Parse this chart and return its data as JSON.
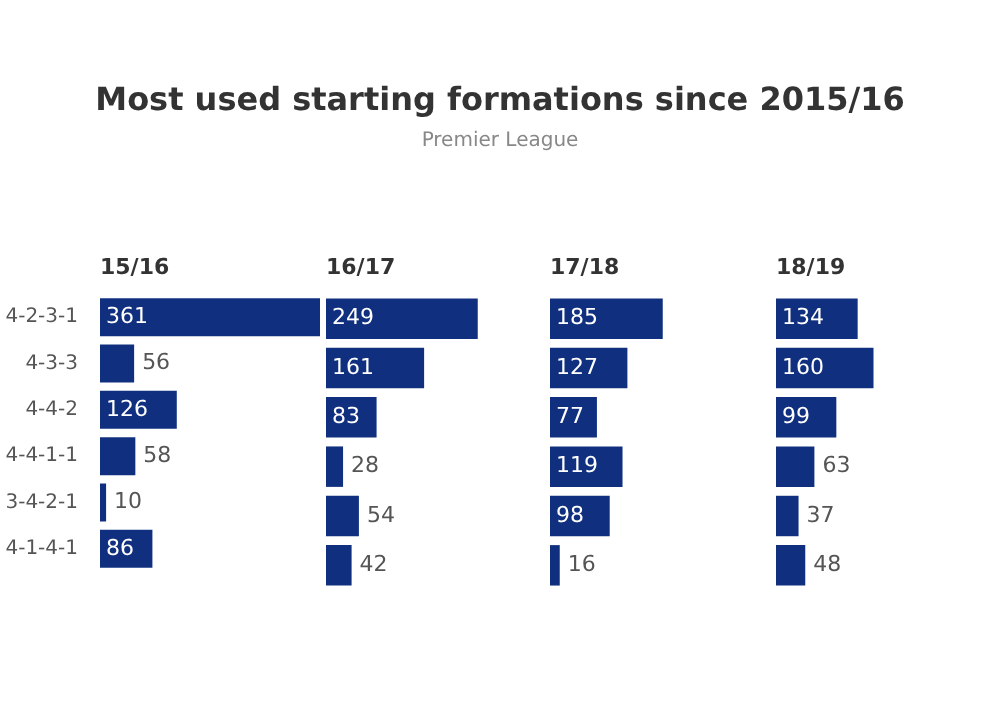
{
  "chart_data": [
    {
      "type": "other",
      "title": "Most used starting formations since 2015/16",
      "subtitle": "Premier League"
    },
    {
      "type": "bar",
      "orientation": "horizontal",
      "title": "15/16",
      "categories": [
        "4-2-3-1",
        "4-3-3",
        "4-4-2",
        "4-4-1-1",
        "3-4-2-1",
        "4-1-4-1"
      ],
      "values": [
        361,
        56,
        126,
        58,
        10,
        86
      ],
      "color": "#10307f",
      "data_labels": true,
      "tick_labels": "y"
    },
    {
      "type": "bar",
      "orientation": "horizontal",
      "title": "16/17",
      "categories": [
        null,
        null,
        null,
        null,
        null,
        null
      ],
      "values": [
        249,
        161,
        83,
        28,
        54,
        42
      ],
      "color": "#10307f",
      "data_labels": true,
      "tick_labels": false
    },
    {
      "type": "bar",
      "orientation": "horizontal",
      "title": "17/18",
      "categories": [
        null,
        null,
        null,
        null,
        null,
        null
      ],
      "values": [
        185,
        127,
        77,
        119,
        98,
        16
      ],
      "color": "#10307f",
      "data_labels": true,
      "tick_labels": false
    },
    {
      "type": "bar",
      "orientation": "horizontal",
      "title": "18/19",
      "categories": [
        null,
        null,
        null,
        null,
        null,
        null
      ],
      "values": [
        134,
        160,
        99,
        63,
        37,
        48
      ],
      "color": "#10307f",
      "data_labels": true,
      "tick_labels": false
    }
  ]
}
